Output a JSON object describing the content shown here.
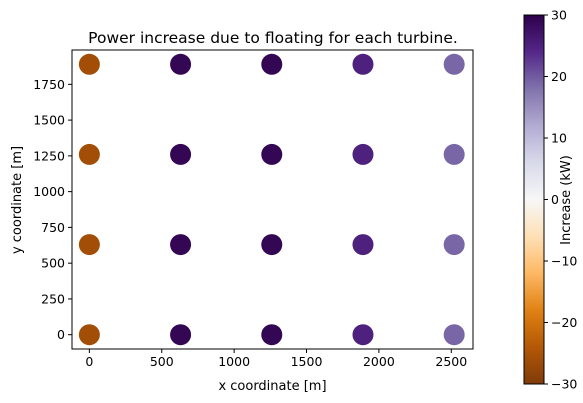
{
  "chart_data": {
    "type": "scatter",
    "title": "Power increase due to floating for each turbine.",
    "xlabel": "x coordinate [m]",
    "ylabel": "y coordinate [m]",
    "xlim": [
      -120,
      2650
    ],
    "ylim": [
      -100,
      1990
    ],
    "xticks": [
      0,
      500,
      1000,
      1500,
      2000,
      2500
    ],
    "yticks": [
      0,
      250,
      500,
      750,
      1000,
      1250,
      1500,
      1750
    ],
    "grid": false,
    "points": [
      {
        "x": 0,
        "y": 1890,
        "value": -26
      },
      {
        "x": 630,
        "y": 1890,
        "value": 29
      },
      {
        "x": 1260,
        "y": 1890,
        "value": 29
      },
      {
        "x": 1890,
        "y": 1890,
        "value": 25
      },
      {
        "x": 2520,
        "y": 1890,
        "value": 19
      },
      {
        "x": 0,
        "y": 1260,
        "value": -26
      },
      {
        "x": 630,
        "y": 1260,
        "value": 29
      },
      {
        "x": 1260,
        "y": 1260,
        "value": 29
      },
      {
        "x": 1890,
        "y": 1260,
        "value": 25
      },
      {
        "x": 2520,
        "y": 1260,
        "value": 19
      },
      {
        "x": 0,
        "y": 630,
        "value": -26
      },
      {
        "x": 630,
        "y": 630,
        "value": 29
      },
      {
        "x": 1260,
        "y": 630,
        "value": 29
      },
      {
        "x": 1890,
        "y": 630,
        "value": 25
      },
      {
        "x": 2520,
        "y": 630,
        "value": 19
      },
      {
        "x": 0,
        "y": 0,
        "value": -26
      },
      {
        "x": 630,
        "y": 0,
        "value": 29
      },
      {
        "x": 1260,
        "y": 0,
        "value": 29
      },
      {
        "x": 1890,
        "y": 0,
        "value": 25
      },
      {
        "x": 2520,
        "y": 0,
        "value": 19
      }
    ],
    "colorbar": {
      "label": "Increase (kW)",
      "min": -30,
      "max": 30,
      "ticks": [
        -30,
        -20,
        -10,
        0,
        10,
        20,
        30
      ],
      "colormap": "PuOr",
      "stops": [
        {
          "v": -30,
          "color": "#7f3b08"
        },
        {
          "v": -24,
          "color": "#b35806"
        },
        {
          "v": -18,
          "color": "#e08214"
        },
        {
          "v": -12,
          "color": "#fdb863"
        },
        {
          "v": -6,
          "color": "#fee0b6"
        },
        {
          "v": 0,
          "color": "#f7f7f7"
        },
        {
          "v": 6,
          "color": "#d8daeb"
        },
        {
          "v": 12,
          "color": "#b2abd2"
        },
        {
          "v": 18,
          "color": "#8073ac"
        },
        {
          "v": 24,
          "color": "#542788"
        },
        {
          "v": 30,
          "color": "#2d004b"
        }
      ]
    }
  }
}
